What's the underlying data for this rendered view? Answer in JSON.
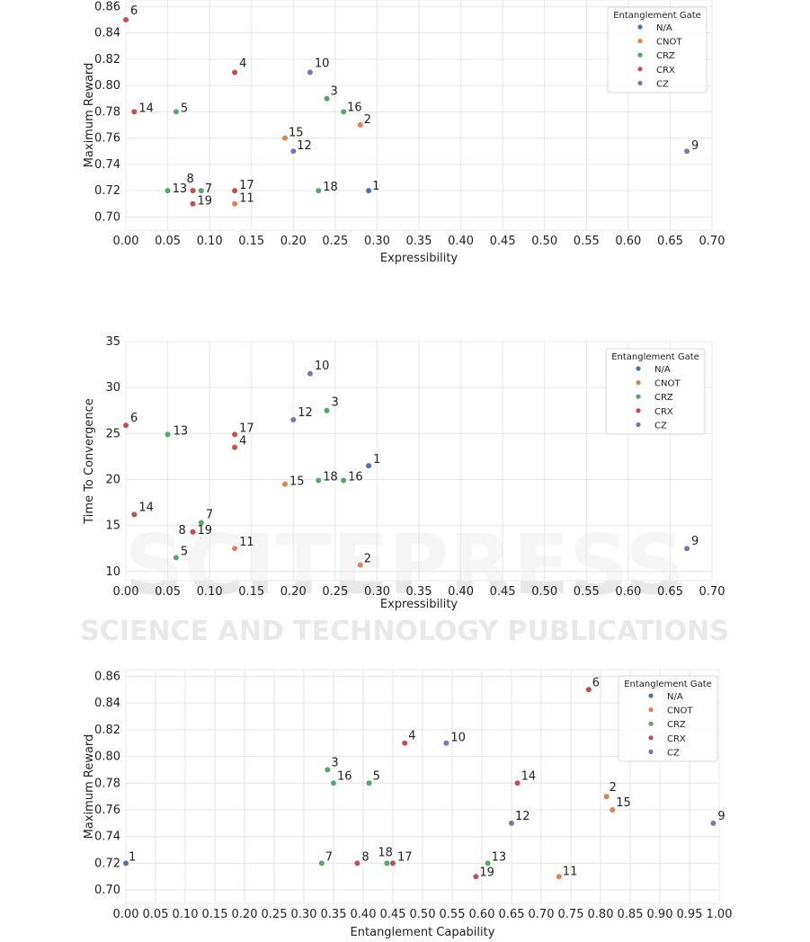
{
  "legend_title": "Entanglement Gate",
  "watermark": {
    "title": "SCITEPRESS",
    "subtitle": "SCIENCE AND TECHNOLOGY PUBLICATIONS"
  },
  "colors": {
    "N/A": "#4c72b0",
    "CNOT": "#dd8452",
    "CRZ": "#55a868",
    "CRX": "#c44e52",
    "CZ": "#8172b3"
  },
  "chart_data": [
    {
      "type": "scatter",
      "xlabel": "Expressibility",
      "ylabel": "Maximum Reward",
      "xlim": [
        0.0,
        0.7
      ],
      "ylim": [
        0.69,
        0.865
      ],
      "xticks": [
        "0.00",
        "0.05",
        "0.10",
        "0.15",
        "0.20",
        "0.25",
        "0.30",
        "0.35",
        "0.40",
        "0.45",
        "0.50",
        "0.55",
        "0.60",
        "0.65",
        "0.70"
      ],
      "yticks": [
        "0.70",
        "0.72",
        "0.74",
        "0.76",
        "0.78",
        "0.80",
        "0.82",
        "0.84",
        "0.86"
      ],
      "grid": true,
      "legend_position": "top-right",
      "legend": [
        "N/A",
        "CNOT",
        "CRZ",
        "CRX",
        "CZ"
      ],
      "points": [
        {
          "label": "1",
          "x": 0.29,
          "y": 0.72,
          "gate": "N/A"
        },
        {
          "label": "2",
          "x": 0.28,
          "y": 0.77,
          "gate": "CNOT"
        },
        {
          "label": "3",
          "x": 0.24,
          "y": 0.79,
          "gate": "CRZ"
        },
        {
          "label": "4",
          "x": 0.13,
          "y": 0.81,
          "gate": "CRX"
        },
        {
          "label": "5",
          "x": 0.06,
          "y": 0.78,
          "gate": "CRZ"
        },
        {
          "label": "6",
          "x": 0.0,
          "y": 0.85,
          "gate": "CRX"
        },
        {
          "label": "7",
          "x": 0.09,
          "y": 0.72,
          "gate": "CRZ"
        },
        {
          "label": "8",
          "x": 0.08,
          "y": 0.72,
          "gate": "CRX"
        },
        {
          "label": "9",
          "x": 0.67,
          "y": 0.75,
          "gate": "CZ"
        },
        {
          "label": "10",
          "x": 0.22,
          "y": 0.81,
          "gate": "CZ"
        },
        {
          "label": "11",
          "x": 0.13,
          "y": 0.71,
          "gate": "CNOT"
        },
        {
          "label": "12",
          "x": 0.2,
          "y": 0.75,
          "gate": "CZ"
        },
        {
          "label": "13",
          "x": 0.05,
          "y": 0.72,
          "gate": "CRZ"
        },
        {
          "label": "14",
          "x": 0.01,
          "y": 0.78,
          "gate": "CRX"
        },
        {
          "label": "15",
          "x": 0.19,
          "y": 0.76,
          "gate": "CNOT"
        },
        {
          "label": "16",
          "x": 0.26,
          "y": 0.78,
          "gate": "CRZ"
        },
        {
          "label": "17",
          "x": 0.13,
          "y": 0.72,
          "gate": "CRX"
        },
        {
          "label": "18",
          "x": 0.23,
          "y": 0.72,
          "gate": "CRZ"
        },
        {
          "label": "19",
          "x": 0.08,
          "y": 0.71,
          "gate": "CRX"
        }
      ]
    },
    {
      "type": "scatter",
      "xlabel": "Expressibility",
      "ylabel": "Time To Convergence",
      "xlim": [
        0.0,
        0.7
      ],
      "ylim": [
        9.0,
        35.0
      ],
      "xticks": [
        "0.00",
        "0.05",
        "0.10",
        "0.15",
        "0.20",
        "0.25",
        "0.30",
        "0.35",
        "0.40",
        "0.45",
        "0.50",
        "0.55",
        "0.60",
        "0.65",
        "0.70"
      ],
      "yticks": [
        "10",
        "15",
        "20",
        "25",
        "30",
        "35"
      ],
      "grid": true,
      "legend_position": "top-right",
      "legend": [
        "N/A",
        "CNOT",
        "CRZ",
        "CRX",
        "CZ"
      ],
      "points": [
        {
          "label": "1",
          "x": 0.29,
          "y": 21.5,
          "gate": "N/A"
        },
        {
          "label": "2",
          "x": 0.28,
          "y": 10.7,
          "gate": "CNOT"
        },
        {
          "label": "3",
          "x": 0.24,
          "y": 27.5,
          "gate": "CRZ"
        },
        {
          "label": "4",
          "x": 0.13,
          "y": 23.5,
          "gate": "CRX"
        },
        {
          "label": "5",
          "x": 0.06,
          "y": 11.5,
          "gate": "CRZ"
        },
        {
          "label": "6",
          "x": 0.0,
          "y": 25.9,
          "gate": "CRX"
        },
        {
          "label": "7",
          "x": 0.09,
          "y": 15.3,
          "gate": "CRZ"
        },
        {
          "label": "8",
          "x": 0.08,
          "y": 14.3,
          "gate": "CRX"
        },
        {
          "label": "9",
          "x": 0.67,
          "y": 12.5,
          "gate": "CZ"
        },
        {
          "label": "10",
          "x": 0.22,
          "y": 31.5,
          "gate": "CZ"
        },
        {
          "label": "11",
          "x": 0.13,
          "y": 12.5,
          "gate": "CNOT"
        },
        {
          "label": "12",
          "x": 0.2,
          "y": 26.5,
          "gate": "CZ"
        },
        {
          "label": "13",
          "x": 0.05,
          "y": 24.9,
          "gate": "CRZ"
        },
        {
          "label": "14",
          "x": 0.01,
          "y": 16.2,
          "gate": "CRX"
        },
        {
          "label": "15",
          "x": 0.19,
          "y": 19.5,
          "gate": "CNOT"
        },
        {
          "label": "16",
          "x": 0.26,
          "y": 19.9,
          "gate": "CRZ"
        },
        {
          "label": "17",
          "x": 0.13,
          "y": 24.9,
          "gate": "CRX"
        },
        {
          "label": "18",
          "x": 0.23,
          "y": 19.9,
          "gate": "CRZ"
        },
        {
          "label": "19",
          "x": 0.08,
          "y": 14.3,
          "gate": "CRX"
        }
      ]
    },
    {
      "type": "scatter",
      "xlabel": "Entanglement Capability",
      "ylabel": "Maximum Reward",
      "xlim": [
        0.0,
        1.0
      ],
      "ylim": [
        0.69,
        0.865
      ],
      "xticks": [
        "0.00",
        "0.05",
        "0.10",
        "0.15",
        "0.20",
        "0.25",
        "0.30",
        "0.35",
        "0.40",
        "0.45",
        "0.50",
        "0.55",
        "0.60",
        "0.65",
        "0.70",
        "0.75",
        "0.80",
        "0.85",
        "0.90",
        "0.95",
        "1.00"
      ],
      "yticks": [
        "0.70",
        "0.72",
        "0.74",
        "0.76",
        "0.78",
        "0.80",
        "0.82",
        "0.84",
        "0.86"
      ],
      "grid": true,
      "legend_position": "top-right",
      "legend": [
        "N/A",
        "CNOT",
        "CRZ",
        "CRX",
        "CZ"
      ],
      "points": [
        {
          "label": "1",
          "x": 0.0,
          "y": 0.72,
          "gate": "N/A"
        },
        {
          "label": "2",
          "x": 0.81,
          "y": 0.77,
          "gate": "CNOT"
        },
        {
          "label": "3",
          "x": 0.34,
          "y": 0.79,
          "gate": "CRZ"
        },
        {
          "label": "4",
          "x": 0.47,
          "y": 0.81,
          "gate": "CRX"
        },
        {
          "label": "5",
          "x": 0.41,
          "y": 0.78,
          "gate": "CRZ"
        },
        {
          "label": "6",
          "x": 0.78,
          "y": 0.85,
          "gate": "CRX"
        },
        {
          "label": "7",
          "x": 0.33,
          "y": 0.72,
          "gate": "CRZ"
        },
        {
          "label": "8",
          "x": 0.39,
          "y": 0.72,
          "gate": "CRX"
        },
        {
          "label": "9",
          "x": 0.99,
          "y": 0.75,
          "gate": "CZ"
        },
        {
          "label": "10",
          "x": 0.54,
          "y": 0.81,
          "gate": "CZ"
        },
        {
          "label": "11",
          "x": 0.73,
          "y": 0.71,
          "gate": "CNOT"
        },
        {
          "label": "12",
          "x": 0.65,
          "y": 0.75,
          "gate": "CZ"
        },
        {
          "label": "13",
          "x": 0.61,
          "y": 0.72,
          "gate": "CRZ"
        },
        {
          "label": "14",
          "x": 0.66,
          "y": 0.78,
          "gate": "CRX"
        },
        {
          "label": "15",
          "x": 0.82,
          "y": 0.76,
          "gate": "CNOT"
        },
        {
          "label": "16",
          "x": 0.35,
          "y": 0.78,
          "gate": "CRZ"
        },
        {
          "label": "17",
          "x": 0.45,
          "y": 0.72,
          "gate": "CRX"
        },
        {
          "label": "18",
          "x": 0.44,
          "y": 0.72,
          "gate": "CRZ"
        },
        {
          "label": "19",
          "x": 0.59,
          "y": 0.71,
          "gate": "CRX"
        }
      ]
    }
  ]
}
